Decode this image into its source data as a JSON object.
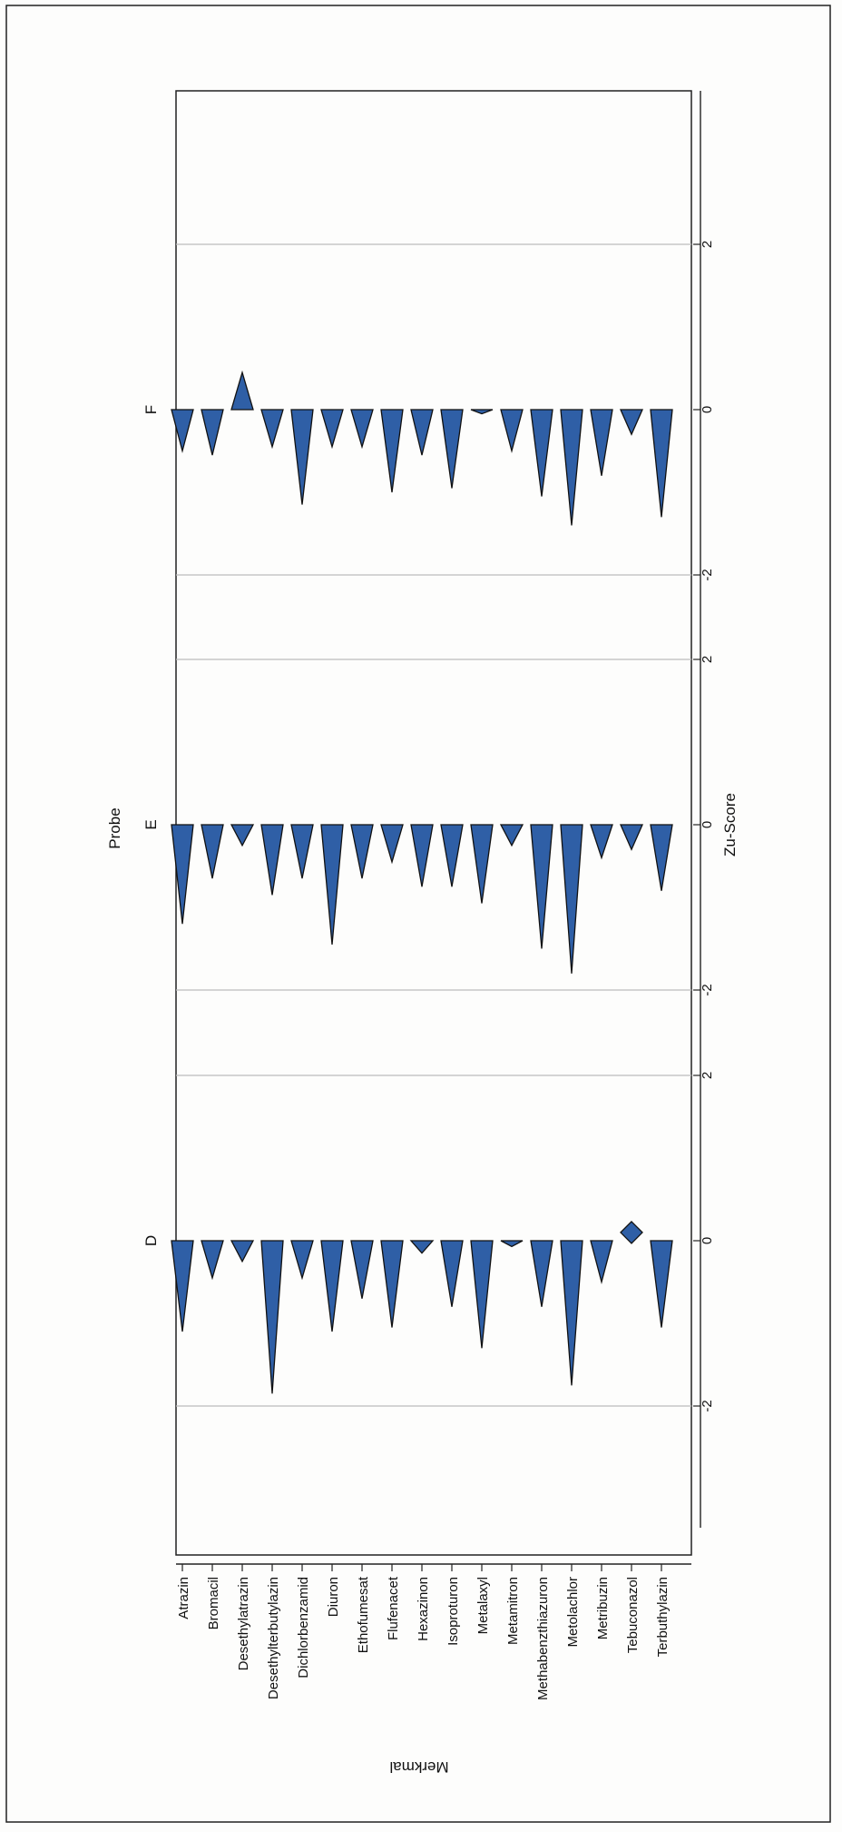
{
  "chart_data": {
    "type": "bar",
    "subtype": "triangle-glyph bars, rotated page (horizontal value axis printed vertically)",
    "group_axis_label": "Probe",
    "category_axis_label": "Merkmal",
    "value_axis_label": "Zu-Score",
    "grid": "vertical reference lines at -2 and 2 in each panel",
    "colors": {
      "fill": "#2f5fa6",
      "stroke": "#111111",
      "grid": "#bdbdbd",
      "frame": "#222222"
    },
    "categories": [
      "Atrazin",
      "Bromacil",
      "Desethylatrazin",
      "Desethylterbutylazin",
      "Dichlorbenzamid",
      "Diuron",
      "Ethofumesat",
      "Flufenacet",
      "Hexazinon",
      "Isoproturon",
      "Metalaxyl",
      "Metamitron",
      "Methabenzthiazuron",
      "Metolachlor",
      "Metribuzin",
      "Tebuconazol",
      "Terbuthylazin"
    ],
    "panels": [
      {
        "name": "D",
        "ticks": [
          -2,
          0,
          2
        ],
        "range": [
          -2.9,
          2.5
        ],
        "values": [
          -1.1,
          -0.45,
          -0.25,
          -1.85,
          -0.45,
          -1.1,
          -0.7,
          -1.05,
          -0.15,
          -0.8,
          -1.3,
          -0.07,
          -0.8,
          -1.75,
          -0.5,
          0.1,
          -1.05
        ],
        "markers": [
          "triangle",
          "triangle",
          "triangle",
          "triangle",
          "triangle",
          "triangle",
          "triangle",
          "triangle",
          "triangle",
          "triangle",
          "triangle",
          "triangle",
          "triangle",
          "triangle",
          "triangle",
          "diamond",
          "triangle"
        ]
      },
      {
        "name": "E",
        "ticks": [
          -2,
          0,
          2
        ],
        "range": [
          -2.0,
          2.0
        ],
        "values": [
          -1.2,
          -0.65,
          -0.25,
          -0.85,
          -0.65,
          -1.45,
          -0.65,
          -0.45,
          -0.75,
          -0.75,
          -0.95,
          -0.25,
          -1.5,
          -1.8,
          -0.4,
          -0.3,
          -0.8
        ],
        "markers": [
          "triangle",
          "triangle",
          "triangle",
          "triangle",
          "triangle",
          "triangle",
          "triangle",
          "triangle",
          "triangle",
          "triangle",
          "triangle",
          "triangle",
          "triangle",
          "triangle",
          "triangle",
          "triangle",
          "triangle"
        ]
      },
      {
        "name": "F",
        "ticks": [
          -2,
          0,
          2
        ],
        "range": [
          -2.0,
          3.8
        ],
        "values": [
          -0.5,
          -0.55,
          0.45,
          -0.45,
          -1.15,
          -0.45,
          -0.45,
          -1.0,
          -0.55,
          -0.95,
          -0.05,
          -0.5,
          -1.05,
          -1.4,
          -0.8,
          -0.3,
          -1.3
        ],
        "markers": [
          "triangle",
          "triangle",
          "triangle",
          "triangle",
          "triangle",
          "triangle",
          "triangle",
          "triangle",
          "triangle",
          "triangle",
          "triangle",
          "triangle",
          "triangle",
          "triangle",
          "triangle",
          "triangle",
          "triangle"
        ]
      }
    ]
  }
}
